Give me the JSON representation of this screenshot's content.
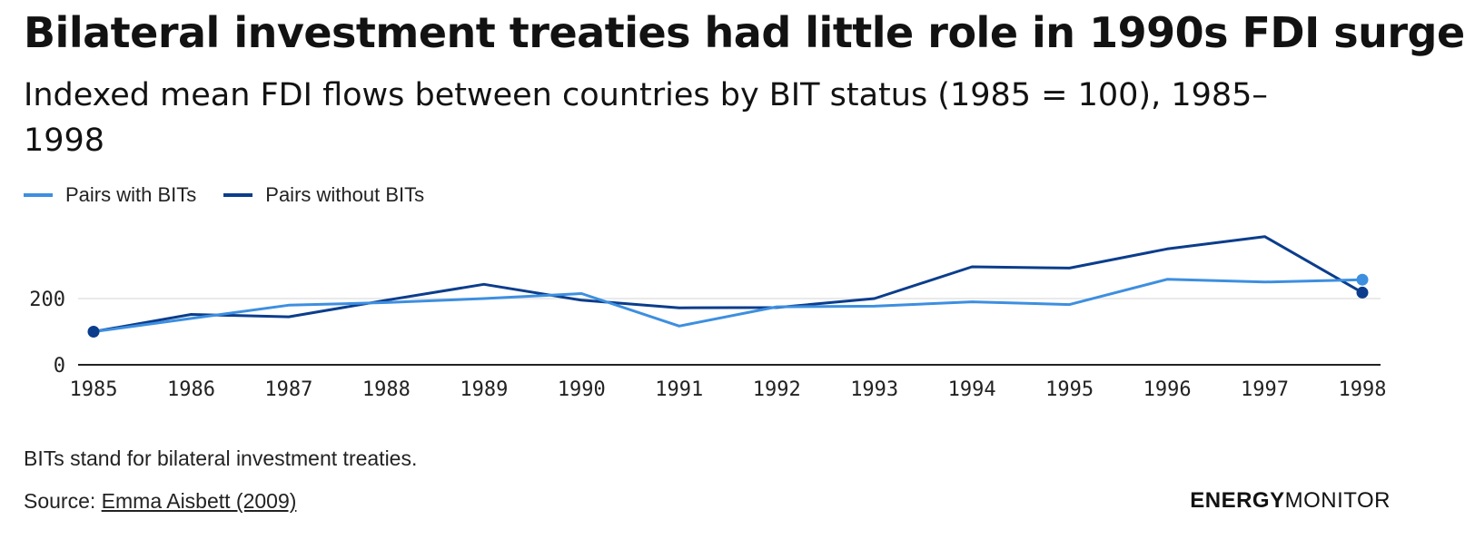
{
  "header": {
    "title": "Bilateral investment treaties had little role in 1990s FDI surge",
    "subtitle": "Indexed mean FDI flows between countries by BIT status (1985 = 100), 1985–1998"
  },
  "colors": {
    "with_bits": "#3d8fe0",
    "without_bits": "#0b3d8c",
    "axis": "#222222",
    "grid": "#e3e3e3"
  },
  "chart_data": {
    "type": "line",
    "title": "Indexed mean FDI flows between countries by BIT status (1985 = 100), 1985–1998",
    "xlabel": "",
    "ylabel": "",
    "x": [
      1985,
      1986,
      1987,
      1988,
      1989,
      1990,
      1991,
      1992,
      1993,
      1994,
      1995,
      1996,
      1997,
      1998
    ],
    "ylim": [
      0,
      390
    ],
    "yticks": [
      0,
      200
    ],
    "legend_position": "top-left",
    "series": [
      {
        "name": "Pairs with BITs",
        "values": [
          100,
          140,
          180,
          188,
          200,
          215,
          117,
          175,
          177,
          190,
          182,
          258,
          250,
          257
        ]
      },
      {
        "name": "Pairs without BITs",
        "values": [
          100,
          152,
          145,
          195,
          243,
          195,
          172,
          173,
          200,
          296,
          292,
          350,
          387,
          218
        ]
      }
    ]
  },
  "footer": {
    "note": "BITs stand for bilateral investment treaties.",
    "source_prefix": "Source: ",
    "source_link": "Emma Aisbett (2009)",
    "brand_bold": "ENERGY",
    "brand_light": "MONITOR"
  }
}
